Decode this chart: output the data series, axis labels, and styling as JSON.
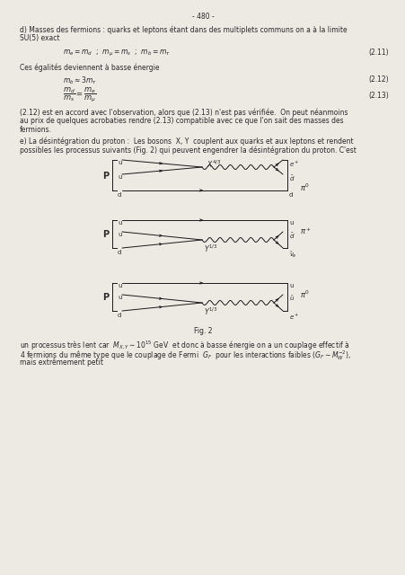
{
  "page_number": "- 480 -",
  "bg_color": "#ede9e3",
  "text_color": "#2a2a2a",
  "title_d": "d) Masses des fermions : quarks et leptons étant dans des multiplets communs on a à la limite",
  "title_d2": "SU(5) exact",
  "eq_211_label": "(2.11)",
  "text_basse": "Ces égalités deviennent à basse énergie",
  "eq_212_label": "(2.12)",
  "eq_213_label": "(2.13)",
  "text_accord": "(2.12) est en accord avec l'observation, alors que (2.13) n'est pas vérifiée.  On peut néanmoins",
  "text_accord2": "au prix de quelques acrobaties rendre (2.13) compatible avec ce que l'on sait des masses des",
  "text_accord3": "fermions.",
  "title_e": "e) La désintégration du proton :  Les bosons  X, Y  couplent aux quarks et aux leptons et rendent",
  "title_e2": "possibles les processus suivants (Fig. 2) qui peuvent engendrer la désintégration du proton. C'est",
  "fig_caption": "Fig. 2",
  "text_bottom1": "un processus très lent car  $M_{X,Y} \\sim 10^{15}$ GeV  et donc à basse énergie on a un couplage effectif à",
  "text_bottom2": "4 fermions du même type que le couplage de Fermi  $G_F$  pour les interactions faibles ($G_F \\sim M_W^{-2}$),",
  "text_bottom3": "mais extrêmement petit"
}
